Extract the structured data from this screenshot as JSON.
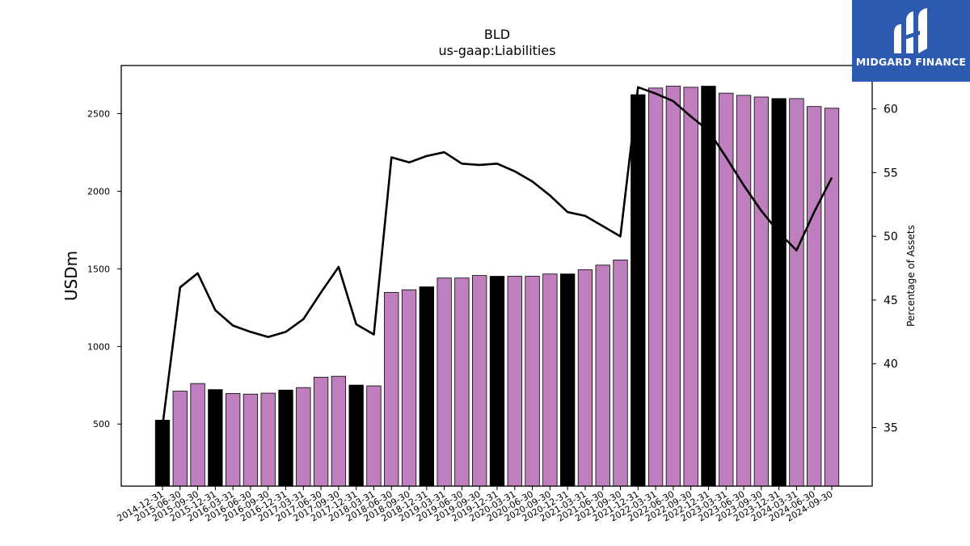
{
  "chart_data": {
    "type": "bar+line",
    "title": "BLD",
    "subtitle": "us-gaap:Liabilities",
    "ylabel": "USDm",
    "ylabel_right": "Percentage of Assets",
    "ylim": [
      100,
      2810
    ],
    "ylim_right": [
      30.4,
      63.4
    ],
    "yticks": [
      500,
      1000,
      1500,
      2000,
      2500
    ],
    "yticks_right": [
      35,
      40,
      45,
      50,
      55,
      60
    ],
    "categories": [
      "2014-12-31",
      "2015-06-30",
      "2015-09-30",
      "2015-12-31",
      "2016-03-31",
      "2016-06-30",
      "2016-09-30",
      "2016-12-31",
      "2017-03-31",
      "2017-06-30",
      "2017-09-30",
      "2017-12-31",
      "2018-03-31",
      "2018-06-30",
      "2018-09-30",
      "2018-12-31",
      "2019-03-31",
      "2019-06-30",
      "2019-09-30",
      "2019-12-31",
      "2020-03-31",
      "2020-06-30",
      "2020-09-30",
      "2020-12-31",
      "2021-03-31",
      "2021-06-30",
      "2021-09-30",
      "2021-12-31",
      "2022-03-31",
      "2022-06-30",
      "2022-09-30",
      "2022-12-31",
      "2023-03-31",
      "2023-06-30",
      "2023-09-30",
      "2023-12-31",
      "2024-03-31",
      "2024-06-30",
      "2024-09-30"
    ],
    "series": [
      {
        "kind": "bar",
        "values": [
          525,
          712,
          761,
          722,
          697,
          693,
          699,
          719,
          735,
          802,
          808,
          751,
          746,
          1348,
          1365,
          1384,
          1441,
          1441,
          1457,
          1452,
          1452,
          1452,
          1467,
          1467,
          1494,
          1524,
          1557,
          2622,
          2665,
          2677,
          2670,
          2677,
          2632,
          2618,
          2607,
          2597,
          2597,
          2546,
          2535
        ],
        "year_end_color": "#000000",
        "quarter_color": "#bf7fbf"
      },
      {
        "kind": "line",
        "axis": "right",
        "color": "#000000",
        "values": [
          35.1,
          46.0,
          47.1,
          44.2,
          43.0,
          42.5,
          42.1,
          42.5,
          43.5,
          45.6,
          47.6,
          43.1,
          42.3,
          56.2,
          55.8,
          56.3,
          56.6,
          55.7,
          55.6,
          55.7,
          55.1,
          54.3,
          53.2,
          51.9,
          51.6,
          50.8,
          50.0,
          61.7,
          61.2,
          60.6,
          59.4,
          58.3,
          56.2,
          54.0,
          52.0,
          50.3,
          48.9,
          51.9,
          54.6
        ]
      }
    ]
  },
  "logo": {
    "text": "MIDGARD FINANCE",
    "bg": "#2b5aae"
  }
}
